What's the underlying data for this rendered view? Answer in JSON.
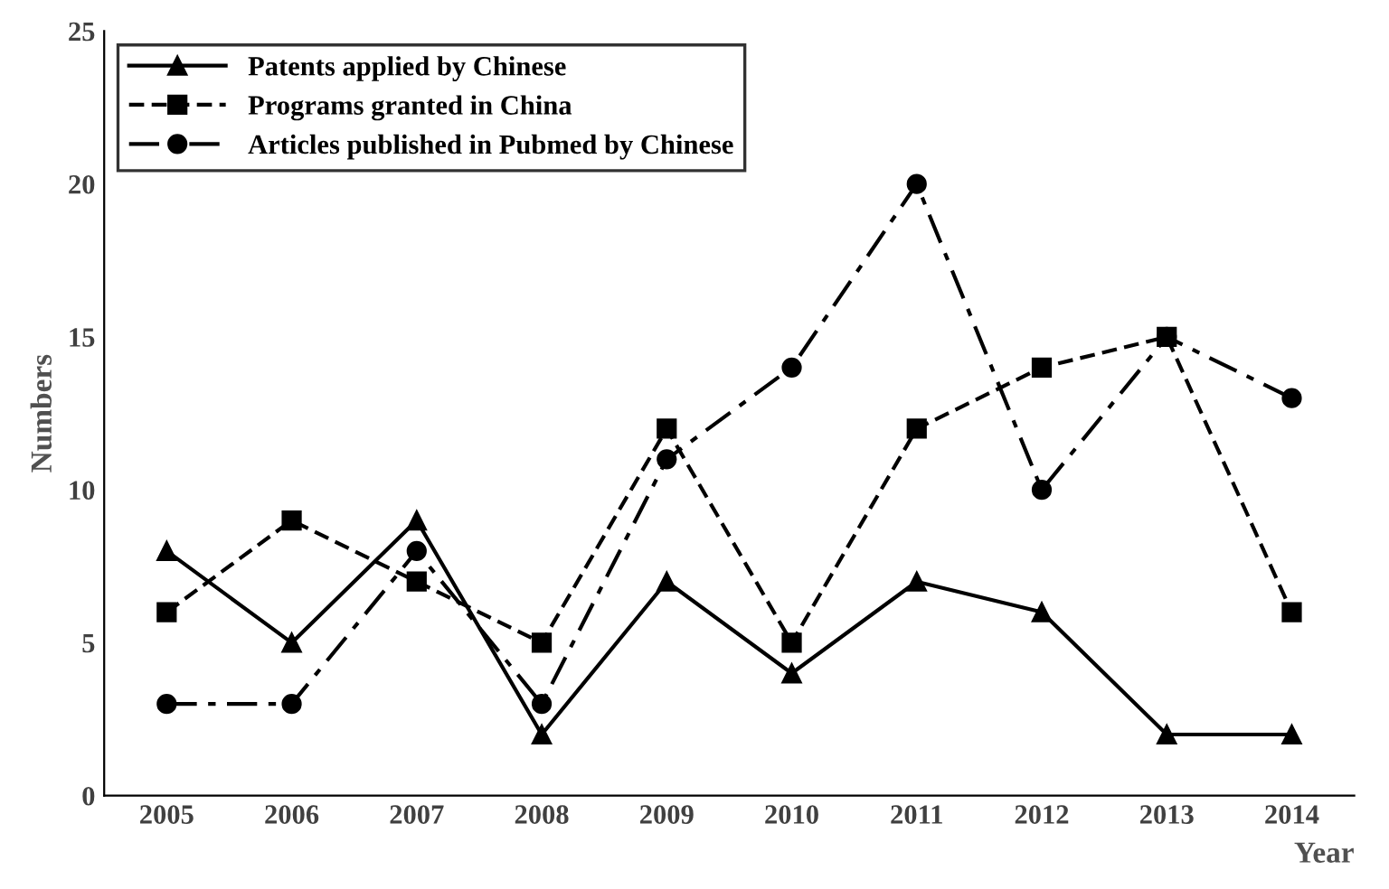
{
  "chart_data": {
    "type": "line",
    "xlabel": "Year",
    "ylabel": "Numbers",
    "categories": [
      "2005",
      "2006",
      "2007",
      "2008",
      "2009",
      "2010",
      "2011",
      "2012",
      "2013",
      "2014"
    ],
    "series": [
      {
        "name": "Patents applied by Chinese",
        "color": "#000000",
        "marker": "triangle",
        "line_style": "solid",
        "values": [
          8,
          5,
          9,
          2,
          7,
          4,
          7,
          6,
          2,
          2
        ]
      },
      {
        "name": "Programs granted in China",
        "color": "#000000",
        "marker": "square",
        "line_style": "dashed",
        "values": [
          6,
          9,
          7,
          5,
          12,
          5,
          12,
          14,
          15,
          6
        ]
      },
      {
        "name": "Articles published in Pubmed by Chinese",
        "color": "#000000",
        "marker": "circle",
        "line_style": "dashdot",
        "values": [
          3,
          3,
          8,
          3,
          11,
          14,
          20,
          10,
          15,
          13
        ]
      }
    ],
    "ylim": [
      0,
      25
    ],
    "yticks": [
      0,
      5,
      10,
      15,
      20,
      25
    ],
    "grid": false,
    "legend": "top left"
  }
}
